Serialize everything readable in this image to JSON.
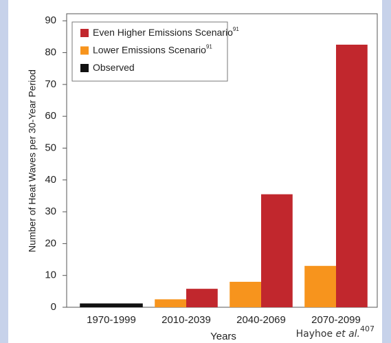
{
  "chart_data": {
    "type": "bar",
    "y_label": "Number of Heat Waves per 30-Year Period",
    "x_label": "Years",
    "categories": [
      "1970-1999",
      "2010-2039",
      "2040-2069",
      "2070-2099"
    ],
    "series": [
      {
        "name": "Even Higher Emissions Scenario",
        "name_sup": "91",
        "color": "#c1272d",
        "values": [
          null,
          5.8,
          35.5,
          82.5
        ]
      },
      {
        "name": "Lower Emissions Scenario",
        "name_sup": "91",
        "color": "#f7941d",
        "values": [
          null,
          2.5,
          8,
          13
        ]
      },
      {
        "name": "Observed",
        "color": "#111111",
        "values": [
          1.2,
          null,
          null,
          null
        ]
      }
    ],
    "ylim": [
      0,
      92
    ],
    "yticks": [
      0,
      10,
      20,
      30,
      40,
      50,
      60,
      70,
      80,
      90
    ],
    "legend": "upper left",
    "source": {
      "text": "Hayhoe",
      "italic": "et al.",
      "sup": "407"
    }
  }
}
